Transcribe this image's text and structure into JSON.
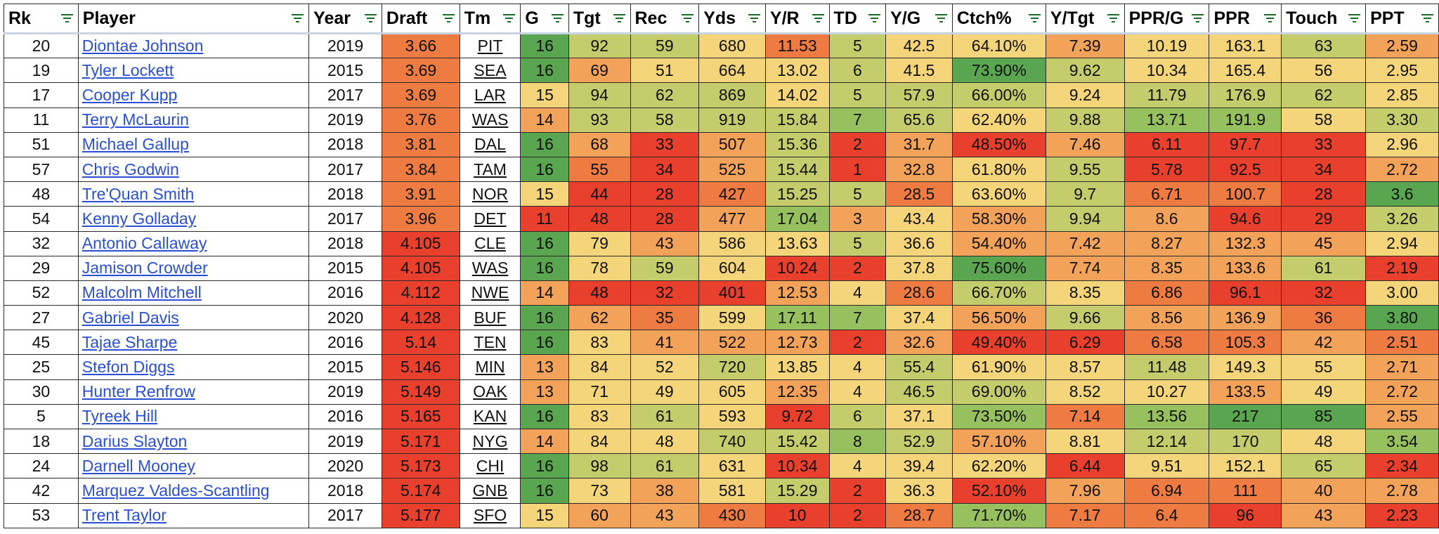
{
  "columns": [
    {
      "key": "rk",
      "label": "Rk",
      "filter_icon": "filter-icon"
    },
    {
      "key": "player",
      "label": "Player",
      "filter_icon": "filter-icon"
    },
    {
      "key": "year",
      "label": "Year",
      "filter_icon": "filter-icon"
    },
    {
      "key": "draft",
      "label": "Draft",
      "filter_icon": "filter-icon"
    },
    {
      "key": "tm",
      "label": "Tm",
      "filter_icon": "filter-icon"
    },
    {
      "key": "g",
      "label": "G",
      "filter_icon": "filter-icon"
    },
    {
      "key": "tgt",
      "label": "Tgt",
      "filter_icon": "filter-icon"
    },
    {
      "key": "rec",
      "label": "Rec",
      "filter_icon": "filter-icon"
    },
    {
      "key": "yds",
      "label": "Yds",
      "filter_icon": "filter-icon"
    },
    {
      "key": "yr",
      "label": "Y/R",
      "filter_icon": "filter-icon"
    },
    {
      "key": "td",
      "label": "TD",
      "filter_icon": "filter-icon"
    },
    {
      "key": "yg",
      "label": "Y/G",
      "filter_icon": "filter-icon"
    },
    {
      "key": "ctch",
      "label": "Ctch%",
      "filter_icon": "filter-icon"
    },
    {
      "key": "ytgt",
      "label": "Y/Tgt",
      "filter_icon": "filter-icon"
    },
    {
      "key": "pprg",
      "label": "PPR/G",
      "filter_icon": "filter-icon"
    },
    {
      "key": "ppr",
      "label": "PPR",
      "filter_icon": "filter-icon"
    },
    {
      "key": "touch",
      "label": "Touch",
      "filter_icon": "filter-icon"
    },
    {
      "key": "ppt",
      "label": "PPT",
      "filter_icon": "filter-icon"
    }
  ],
  "palette": {
    "green": "#5aa54f",
    "light_green": "#97c15e",
    "yellow_green": "#c4cc6c",
    "yellow": "#f5d57a",
    "orange": "#f3a25a",
    "orange_red": "#ee7c42",
    "red": "#e9402e",
    "link": "#2a4fd6",
    "header_rule": "#c8d3e3"
  },
  "rows": [
    {
      "rk": "20",
      "player": "Diontae Johnson",
      "year": "2019",
      "draft": "3.66",
      "tm": "PIT",
      "g": "16",
      "tgt": "92",
      "rec": "59",
      "yds": "680",
      "yr": "11.53",
      "td": "5",
      "yg": "42.5",
      "ctch": "64.10%",
      "ytgt": "7.39",
      "pprg": "10.19",
      "ppr": "163.1",
      "touch": "63",
      "ppt": "2.59",
      "colors": {
        "draft": "orange_red",
        "g": "green",
        "tgt": "yellow_green",
        "rec": "yellow_green",
        "yds": "yellow",
        "yr": "orange_red",
        "td": "yellow_green",
        "yg": "yellow",
        "ctch": "yellow",
        "ytgt": "orange",
        "pprg": "yellow",
        "ppr": "yellow",
        "touch": "yellow_green",
        "ppt": "orange"
      }
    },
    {
      "rk": "19",
      "player": "Tyler Lockett",
      "year": "2015",
      "draft": "3.69",
      "tm": "SEA",
      "g": "16",
      "tgt": "69",
      "rec": "51",
      "yds": "664",
      "yr": "13.02",
      "td": "6",
      "yg": "41.5",
      "ctch": "73.90%",
      "ytgt": "9.62",
      "pprg": "10.34",
      "ppr": "165.4",
      "touch": "56",
      "ppt": "2.95",
      "colors": {
        "draft": "orange_red",
        "g": "green",
        "tgt": "orange",
        "rec": "yellow",
        "yds": "yellow",
        "yr": "yellow",
        "td": "yellow_green",
        "yg": "yellow",
        "ctch": "green",
        "ytgt": "yellow_green",
        "pprg": "yellow",
        "ppr": "yellow",
        "touch": "yellow",
        "ppt": "yellow"
      }
    },
    {
      "rk": "17",
      "player": "Cooper Kupp",
      "year": "2017",
      "draft": "3.69",
      "tm": "LAR",
      "g": "15",
      "tgt": "94",
      "rec": "62",
      "yds": "869",
      "yr": "14.02",
      "td": "5",
      "yg": "57.9",
      "ctch": "66.00%",
      "ytgt": "9.24",
      "pprg": "11.79",
      "ppr": "176.9",
      "touch": "62",
      "ppt": "2.85",
      "colors": {
        "draft": "orange_red",
        "g": "yellow",
        "tgt": "yellow_green",
        "rec": "yellow_green",
        "yds": "yellow_green",
        "yr": "yellow",
        "td": "yellow_green",
        "yg": "yellow_green",
        "ctch": "yellow_green",
        "ytgt": "yellow",
        "pprg": "yellow_green",
        "ppr": "yellow_green",
        "touch": "yellow_green",
        "ppt": "yellow"
      }
    },
    {
      "rk": "11",
      "player": "Terry McLaurin",
      "year": "2019",
      "draft": "3.76",
      "tm": "WAS",
      "g": "14",
      "tgt": "93",
      "rec": "58",
      "yds": "919",
      "yr": "15.84",
      "td": "7",
      "yg": "65.6",
      "ctch": "62.40%",
      "ytgt": "9.88",
      "pprg": "13.71",
      "ppr": "191.9",
      "touch": "58",
      "ppt": "3.30",
      "colors": {
        "draft": "orange_red",
        "g": "orange",
        "tgt": "yellow_green",
        "rec": "yellow_green",
        "yds": "yellow_green",
        "yr": "yellow_green",
        "td": "light_green",
        "yg": "yellow_green",
        "ctch": "yellow",
        "ytgt": "yellow_green",
        "pprg": "light_green",
        "ppr": "light_green",
        "touch": "yellow",
        "ppt": "yellow_green"
      }
    },
    {
      "rk": "51",
      "player": "Michael Gallup",
      "year": "2018",
      "draft": "3.81",
      "tm": "DAL",
      "g": "16",
      "tgt": "68",
      "rec": "33",
      "yds": "507",
      "yr": "15.36",
      "td": "2",
      "yg": "31.7",
      "ctch": "48.50%",
      "ytgt": "7.46",
      "pprg": "6.11",
      "ppr": "97.7",
      "touch": "33",
      "ppt": "2.96",
      "colors": {
        "draft": "orange_red",
        "g": "green",
        "tgt": "orange",
        "rec": "red",
        "yds": "orange",
        "yr": "yellow_green",
        "td": "red",
        "yg": "orange",
        "ctch": "red",
        "ytgt": "orange",
        "pprg": "red",
        "ppr": "red",
        "touch": "red",
        "ppt": "yellow"
      }
    },
    {
      "rk": "57",
      "player": "Chris Godwin",
      "year": "2017",
      "draft": "3.84",
      "tm": "TAM",
      "g": "16",
      "tgt": "55",
      "rec": "34",
      "yds": "525",
      "yr": "15.44",
      "td": "1",
      "yg": "32.8",
      "ctch": "61.80%",
      "ytgt": "9.55",
      "pprg": "5.78",
      "ppr": "92.5",
      "touch": "34",
      "ppt": "2.72",
      "colors": {
        "draft": "orange_red",
        "g": "green",
        "tgt": "orange_red",
        "rec": "red",
        "yds": "orange",
        "yr": "yellow_green",
        "td": "red",
        "yg": "orange",
        "ctch": "yellow",
        "ytgt": "yellow_green",
        "pprg": "red",
        "ppr": "red",
        "touch": "red",
        "ppt": "orange"
      }
    },
    {
      "rk": "48",
      "player": "Tre'Quan Smith",
      "year": "2018",
      "draft": "3.91",
      "tm": "NOR",
      "g": "15",
      "tgt": "44",
      "rec": "28",
      "yds": "427",
      "yr": "15.25",
      "td": "5",
      "yg": "28.5",
      "ctch": "63.60%",
      "ytgt": "9.7",
      "pprg": "6.71",
      "ppr": "100.7",
      "touch": "28",
      "ppt": "3.6",
      "colors": {
        "draft": "orange_red",
        "g": "yellow",
        "tgt": "red",
        "rec": "red",
        "yds": "orange_red",
        "yr": "yellow_green",
        "td": "yellow_green",
        "yg": "orange_red",
        "ctch": "yellow",
        "ytgt": "yellow_green",
        "pprg": "orange_red",
        "ppr": "orange_red",
        "touch": "red",
        "ppt": "green"
      }
    },
    {
      "rk": "54",
      "player": "Kenny Golladay",
      "year": "2017",
      "draft": "3.96",
      "tm": "DET",
      "g": "11",
      "tgt": "48",
      "rec": "28",
      "yds": "477",
      "yr": "17.04",
      "td": "3",
      "yg": "43.4",
      "ctch": "58.30%",
      "ytgt": "9.94",
      "pprg": "8.6",
      "ppr": "94.6",
      "touch": "29",
      "ppt": "3.26",
      "colors": {
        "draft": "orange_red",
        "g": "red",
        "tgt": "red",
        "rec": "red",
        "yds": "orange",
        "yr": "light_green",
        "td": "orange",
        "yg": "yellow",
        "ctch": "orange",
        "ytgt": "yellow_green",
        "pprg": "orange",
        "ppr": "red",
        "touch": "red",
        "ppt": "yellow_green"
      }
    },
    {
      "rk": "32",
      "player": "Antonio Callaway",
      "year": "2018",
      "draft": "4.105",
      "tm": "CLE",
      "g": "16",
      "tgt": "79",
      "rec": "43",
      "yds": "586",
      "yr": "13.63",
      "td": "5",
      "yg": "36.6",
      "ctch": "54.40%",
      "ytgt": "7.42",
      "pprg": "8.27",
      "ppr": "132.3",
      "touch": "45",
      "ppt": "2.94",
      "colors": {
        "draft": "red",
        "g": "green",
        "tgt": "yellow",
        "rec": "orange",
        "yds": "yellow",
        "yr": "yellow",
        "td": "yellow_green",
        "yg": "yellow",
        "ctch": "orange",
        "ytgt": "orange",
        "pprg": "orange",
        "ppr": "orange",
        "touch": "orange",
        "ppt": "yellow"
      }
    },
    {
      "rk": "29",
      "player": "Jamison Crowder",
      "year": "2015",
      "draft": "4.105",
      "tm": "WAS",
      "g": "16",
      "tgt": "78",
      "rec": "59",
      "yds": "604",
      "yr": "10.24",
      "td": "2",
      "yg": "37.8",
      "ctch": "75.60%",
      "ytgt": "7.74",
      "pprg": "8.35",
      "ppr": "133.6",
      "touch": "61",
      "ppt": "2.19",
      "colors": {
        "draft": "red",
        "g": "green",
        "tgt": "yellow",
        "rec": "yellow_green",
        "yds": "yellow",
        "yr": "red",
        "td": "red",
        "yg": "yellow",
        "ctch": "green",
        "ytgt": "orange",
        "pprg": "orange",
        "ppr": "orange",
        "touch": "yellow_green",
        "ppt": "red"
      }
    },
    {
      "rk": "52",
      "player": "Malcolm Mitchell",
      "year": "2016",
      "draft": "4.112",
      "tm": "NWE",
      "g": "14",
      "tgt": "48",
      "rec": "32",
      "yds": "401",
      "yr": "12.53",
      "td": "4",
      "yg": "28.6",
      "ctch": "66.70%",
      "ytgt": "8.35",
      "pprg": "6.86",
      "ppr": "96.1",
      "touch": "32",
      "ppt": "3.00",
      "colors": {
        "draft": "red",
        "g": "orange",
        "tgt": "red",
        "rec": "red",
        "yds": "red",
        "yr": "orange",
        "td": "yellow",
        "yg": "orange_red",
        "ctch": "yellow_green",
        "ytgt": "yellow",
        "pprg": "orange_red",
        "ppr": "red",
        "touch": "red",
        "ppt": "yellow"
      }
    },
    {
      "rk": "27",
      "player": "Gabriel Davis",
      "year": "2020",
      "draft": "4.128",
      "tm": "BUF",
      "g": "16",
      "tgt": "62",
      "rec": "35",
      "yds": "599",
      "yr": "17.11",
      "td": "7",
      "yg": "37.4",
      "ctch": "56.50%",
      "ytgt": "9.66",
      "pprg": "8.56",
      "ppr": "136.9",
      "touch": "36",
      "ppt": "3.80",
      "colors": {
        "draft": "red",
        "g": "green",
        "tgt": "orange",
        "rec": "orange_red",
        "yds": "yellow",
        "yr": "light_green",
        "td": "light_green",
        "yg": "yellow",
        "ctch": "orange",
        "ytgt": "yellow_green",
        "pprg": "orange",
        "ppr": "orange",
        "touch": "orange_red",
        "ppt": "green"
      }
    },
    {
      "rk": "45",
      "player": "Tajae Sharpe",
      "year": "2016",
      "draft": "5.14",
      "tm": "TEN",
      "g": "16",
      "tgt": "83",
      "rec": "41",
      "yds": "522",
      "yr": "12.73",
      "td": "2",
      "yg": "32.6",
      "ctch": "49.40%",
      "ytgt": "6.29",
      "pprg": "6.58",
      "ppr": "105.3",
      "touch": "42",
      "ppt": "2.51",
      "colors": {
        "draft": "red",
        "g": "green",
        "tgt": "yellow",
        "rec": "orange",
        "yds": "orange",
        "yr": "orange",
        "td": "red",
        "yg": "orange",
        "ctch": "red",
        "ytgt": "red",
        "pprg": "orange_red",
        "ppr": "orange_red",
        "touch": "orange",
        "ppt": "orange_red"
      }
    },
    {
      "rk": "25",
      "player": "Stefon Diggs",
      "year": "2015",
      "draft": "5.146",
      "tm": "MIN",
      "g": "13",
      "tgt": "84",
      "rec": "52",
      "yds": "720",
      "yr": "13.85",
      "td": "4",
      "yg": "55.4",
      "ctch": "61.90%",
      "ytgt": "8.57",
      "pprg": "11.48",
      "ppr": "149.3",
      "touch": "55",
      "ppt": "2.71",
      "colors": {
        "draft": "red",
        "g": "orange",
        "tgt": "yellow",
        "rec": "yellow",
        "yds": "yellow_green",
        "yr": "yellow",
        "td": "yellow",
        "yg": "yellow_green",
        "ctch": "yellow",
        "ytgt": "yellow",
        "pprg": "yellow_green",
        "ppr": "yellow",
        "touch": "yellow",
        "ppt": "orange"
      }
    },
    {
      "rk": "30",
      "player": "Hunter Renfrow",
      "year": "2019",
      "draft": "5.149",
      "tm": "OAK",
      "g": "13",
      "tgt": "71",
      "rec": "49",
      "yds": "605",
      "yr": "12.35",
      "td": "4",
      "yg": "46.5",
      "ctch": "69.00%",
      "ytgt": "8.52",
      "pprg": "10.27",
      "ppr": "133.5",
      "touch": "49",
      "ppt": "2.72",
      "colors": {
        "draft": "red",
        "g": "orange",
        "tgt": "yellow",
        "rec": "yellow",
        "yds": "yellow",
        "yr": "orange",
        "td": "yellow",
        "yg": "yellow_green",
        "ctch": "yellow_green",
        "ytgt": "yellow",
        "pprg": "yellow",
        "ppr": "orange",
        "touch": "yellow",
        "ppt": "orange"
      }
    },
    {
      "rk": "5",
      "player": "Tyreek Hill",
      "year": "2016",
      "draft": "5.165",
      "tm": "KAN",
      "g": "16",
      "tgt": "83",
      "rec": "61",
      "yds": "593",
      "yr": "9.72",
      "td": "6",
      "yg": "37.1",
      "ctch": "73.50%",
      "ytgt": "7.14",
      "pprg": "13.56",
      "ppr": "217",
      "touch": "85",
      "ppt": "2.55",
      "colors": {
        "draft": "red",
        "g": "green",
        "tgt": "yellow",
        "rec": "yellow_green",
        "yds": "yellow",
        "yr": "red",
        "td": "yellow_green",
        "yg": "yellow",
        "ctch": "light_green",
        "ytgt": "orange_red",
        "pprg": "light_green",
        "ppr": "green",
        "touch": "green",
        "ppt": "orange"
      }
    },
    {
      "rk": "18",
      "player": "Darius Slayton",
      "year": "2019",
      "draft": "5.171",
      "tm": "NYG",
      "g": "14",
      "tgt": "84",
      "rec": "48",
      "yds": "740",
      "yr": "15.42",
      "td": "8",
      "yg": "52.9",
      "ctch": "57.10%",
      "ytgt": "8.81",
      "pprg": "12.14",
      "ppr": "170",
      "touch": "48",
      "ppt": "3.54",
      "colors": {
        "draft": "red",
        "g": "orange",
        "tgt": "yellow",
        "rec": "yellow",
        "yds": "yellow_green",
        "yr": "yellow_green",
        "td": "light_green",
        "yg": "yellow_green",
        "ctch": "orange",
        "ytgt": "yellow",
        "pprg": "yellow_green",
        "ppr": "yellow_green",
        "touch": "yellow",
        "ppt": "light_green"
      }
    },
    {
      "rk": "24",
      "player": "Darnell Mooney",
      "year": "2020",
      "draft": "5.173",
      "tm": "CHI",
      "g": "16",
      "tgt": "98",
      "rec": "61",
      "yds": "631",
      "yr": "10.34",
      "td": "4",
      "yg": "39.4",
      "ctch": "62.20%",
      "ytgt": "6.44",
      "pprg": "9.51",
      "ppr": "152.1",
      "touch": "65",
      "ppt": "2.34",
      "colors": {
        "draft": "red",
        "g": "green",
        "tgt": "yellow_green",
        "rec": "yellow_green",
        "yds": "yellow",
        "yr": "red",
        "td": "yellow",
        "yg": "yellow",
        "ctch": "yellow",
        "ytgt": "red",
        "pprg": "yellow",
        "ppr": "yellow",
        "touch": "yellow_green",
        "ppt": "red"
      }
    },
    {
      "rk": "42",
      "player": "Marquez Valdes-Scantling",
      "year": "2018",
      "draft": "5.174",
      "tm": "GNB",
      "g": "16",
      "tgt": "73",
      "rec": "38",
      "yds": "581",
      "yr": "15.29",
      "td": "2",
      "yg": "36.3",
      "ctch": "52.10%",
      "ytgt": "7.96",
      "pprg": "6.94",
      "ppr": "111",
      "touch": "40",
      "ppt": "2.78",
      "colors": {
        "draft": "red",
        "g": "green",
        "tgt": "yellow",
        "rec": "orange",
        "yds": "yellow",
        "yr": "yellow_green",
        "td": "red",
        "yg": "yellow",
        "ctch": "red",
        "ytgt": "orange",
        "pprg": "orange_red",
        "ppr": "orange_red",
        "touch": "orange",
        "ppt": "orange"
      }
    },
    {
      "rk": "53",
      "player": "Trent Taylor",
      "year": "2017",
      "draft": "5.177",
      "tm": "SFO",
      "g": "15",
      "tgt": "60",
      "rec": "43",
      "yds": "430",
      "yr": "10",
      "td": "2",
      "yg": "28.7",
      "ctch": "71.70%",
      "ytgt": "7.17",
      "pprg": "6.4",
      "ppr": "96",
      "touch": "43",
      "ppt": "2.23",
      "colors": {
        "draft": "red",
        "g": "yellow",
        "tgt": "orange",
        "rec": "orange",
        "yds": "orange_red",
        "yr": "red",
        "td": "red",
        "yg": "orange_red",
        "ctch": "light_green",
        "ytgt": "orange_red",
        "pprg": "orange_red",
        "ppr": "red",
        "touch": "orange",
        "ppt": "red"
      }
    }
  ]
}
